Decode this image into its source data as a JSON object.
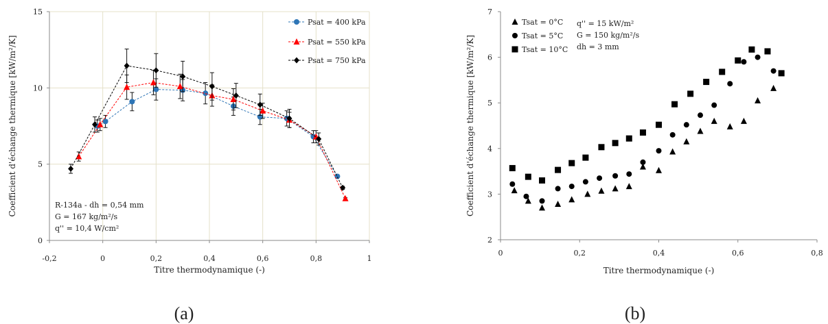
{
  "chart_data": [
    {
      "type": "scatter",
      "panel_label": "(a)",
      "xlabel": "Titre thermodynamique (-)",
      "ylabel": "Coefficient d'échange thermique [kW/m²/K]",
      "xlim": [
        -0.2,
        1
      ],
      "ylim": [
        0,
        15
      ],
      "x_ticks": [
        "-0,2",
        "0",
        "0,2",
        "0,4",
        "0,6",
        "0,8",
        "1"
      ],
      "y_ticks": [
        "0",
        "5",
        "10",
        "15"
      ],
      "grid": true,
      "legend_position": "top-right",
      "annotation": [
        "R-134a - dh = 0,54 mm",
        "G = 167 kg/m²/s",
        "q'' = 10,4 W/cm²"
      ],
      "series": [
        {
          "name": "Psat = 400 kPa",
          "color": "#2e75b6",
          "marker": "circle",
          "points": [
            {
              "x": -0.02,
              "y": 7.5,
              "err": 0.4
            },
            {
              "x": 0.01,
              "y": 7.8,
              "err": 0.4
            },
            {
              "x": 0.11,
              "y": 9.1,
              "err": 0.6
            },
            {
              "x": 0.2,
              "y": 9.9,
              "err": 0.7
            },
            {
              "x": 0.3,
              "y": 9.85,
              "err": 0.7
            },
            {
              "x": 0.385,
              "y": 9.65,
              "err": 0.7
            },
            {
              "x": 0.49,
              "y": 8.8,
              "err": 0.6
            },
            {
              "x": 0.59,
              "y": 8.1,
              "err": 0.5
            },
            {
              "x": 0.69,
              "y": 8.0,
              "err": 0.5
            },
            {
              "x": 0.79,
              "y": 6.8,
              "err": 0.4
            },
            {
              "x": 0.88,
              "y": 4.2,
              "err": 0.1
            }
          ]
        },
        {
          "name": "Psat = 550 kPa",
          "color": "#ff0000",
          "marker": "triangle",
          "points": [
            {
              "x": -0.09,
              "y": 5.5,
              "err": 0.3
            },
            {
              "x": -0.01,
              "y": 7.6,
              "err": 0.4
            },
            {
              "x": 0.09,
              "y": 10.05,
              "err": 0.8
            },
            {
              "x": 0.19,
              "y": 10.35,
              "err": 0.8
            },
            {
              "x": 0.29,
              "y": 10.1,
              "err": 0.8
            },
            {
              "x": 0.41,
              "y": 9.5,
              "err": 0.7
            },
            {
              "x": 0.49,
              "y": 9.25,
              "err": 0.7
            },
            {
              "x": 0.6,
              "y": 8.5,
              "err": 0.5
            },
            {
              "x": 0.7,
              "y": 7.9,
              "err": 0.5
            },
            {
              "x": 0.8,
              "y": 6.8,
              "err": 0.4
            },
            {
              "x": 0.91,
              "y": 2.75,
              "err": 0.05
            }
          ]
        },
        {
          "name": "Psat = 750 kPa",
          "color": "#000000",
          "marker": "diamond",
          "points": [
            {
              "x": -0.12,
              "y": 4.7,
              "err": 0.3
            },
            {
              "x": -0.03,
              "y": 7.6,
              "err": 0.5
            },
            {
              "x": 0.09,
              "y": 11.45,
              "err": 1.1
            },
            {
              "x": 0.2,
              "y": 11.15,
              "err": 1.1
            },
            {
              "x": 0.3,
              "y": 10.75,
              "err": 1.0
            },
            {
              "x": 0.41,
              "y": 10.1,
              "err": 0.9
            },
            {
              "x": 0.5,
              "y": 9.5,
              "err": 0.8
            },
            {
              "x": 0.59,
              "y": 8.9,
              "err": 0.7
            },
            {
              "x": 0.7,
              "y": 8.0,
              "err": 0.6
            },
            {
              "x": 0.81,
              "y": 6.65,
              "err": 0.4
            },
            {
              "x": 0.9,
              "y": 3.45,
              "err": 0.1
            }
          ]
        }
      ]
    },
    {
      "type": "scatter",
      "panel_label": "(b)",
      "xlabel": "Titre thermodynamique (-)",
      "ylabel": "Coefficient d'échange thermique [kW/m²/K]",
      "xlim": [
        0,
        0.8
      ],
      "ylim": [
        2,
        7
      ],
      "x_ticks": [
        "0",
        "0,2",
        "0,4",
        "0,6",
        "0,8"
      ],
      "y_ticks": [
        "2",
        "3",
        "4",
        "5",
        "6",
        "7"
      ],
      "grid": false,
      "legend_position": "top-left",
      "annotation": [
        "q'' = 15 kW/m²",
        "G = 150 kg/m²/s",
        "dh = 3 mm"
      ],
      "series": [
        {
          "name": "Tsat = 0°C",
          "color": "#000000",
          "marker": "triangle",
          "points": [
            {
              "x": 0.035,
              "y": 3.08
            },
            {
              "x": 0.07,
              "y": 2.85
            },
            {
              "x": 0.105,
              "y": 2.7
            },
            {
              "x": 0.145,
              "y": 2.78
            },
            {
              "x": 0.18,
              "y": 2.88
            },
            {
              "x": 0.22,
              "y": 3.0
            },
            {
              "x": 0.255,
              "y": 3.07
            },
            {
              "x": 0.29,
              "y": 3.12
            },
            {
              "x": 0.325,
              "y": 3.17
            },
            {
              "x": 0.36,
              "y": 3.6
            },
            {
              "x": 0.4,
              "y": 3.52
            },
            {
              "x": 0.435,
              "y": 3.93
            },
            {
              "x": 0.47,
              "y": 4.15
            },
            {
              "x": 0.505,
              "y": 4.38
            },
            {
              "x": 0.54,
              "y": 4.6
            },
            {
              "x": 0.58,
              "y": 4.48
            },
            {
              "x": 0.615,
              "y": 4.6
            },
            {
              "x": 0.65,
              "y": 5.05
            },
            {
              "x": 0.69,
              "y": 5.32
            }
          ]
        },
        {
          "name": "Tsat = 5°C",
          "color": "#000000",
          "marker": "circle",
          "points": [
            {
              "x": 0.03,
              "y": 3.22
            },
            {
              "x": 0.065,
              "y": 2.95
            },
            {
              "x": 0.105,
              "y": 2.85
            },
            {
              "x": 0.145,
              "y": 3.12
            },
            {
              "x": 0.18,
              "y": 3.17
            },
            {
              "x": 0.215,
              "y": 3.27
            },
            {
              "x": 0.25,
              "y": 3.35
            },
            {
              "x": 0.29,
              "y": 3.4
            },
            {
              "x": 0.325,
              "y": 3.44
            },
            {
              "x": 0.36,
              "y": 3.7
            },
            {
              "x": 0.4,
              "y": 3.95
            },
            {
              "x": 0.435,
              "y": 4.3
            },
            {
              "x": 0.47,
              "y": 4.52
            },
            {
              "x": 0.505,
              "y": 4.73
            },
            {
              "x": 0.54,
              "y": 4.95
            },
            {
              "x": 0.58,
              "y": 5.42
            },
            {
              "x": 0.615,
              "y": 5.9
            },
            {
              "x": 0.65,
              "y": 6.0
            },
            {
              "x": 0.69,
              "y": 5.7
            }
          ]
        },
        {
          "name": "Tsat = 10°C",
          "color": "#000000",
          "marker": "square",
          "points": [
            {
              "x": 0.03,
              "y": 3.57
            },
            {
              "x": 0.07,
              "y": 3.38
            },
            {
              "x": 0.105,
              "y": 3.3
            },
            {
              "x": 0.145,
              "y": 3.53
            },
            {
              "x": 0.18,
              "y": 3.68
            },
            {
              "x": 0.215,
              "y": 3.8
            },
            {
              "x": 0.255,
              "y": 4.03
            },
            {
              "x": 0.29,
              "y": 4.12
            },
            {
              "x": 0.325,
              "y": 4.22
            },
            {
              "x": 0.36,
              "y": 4.35
            },
            {
              "x": 0.4,
              "y": 4.52
            },
            {
              "x": 0.44,
              "y": 4.97
            },
            {
              "x": 0.48,
              "y": 5.2
            },
            {
              "x": 0.52,
              "y": 5.46
            },
            {
              "x": 0.56,
              "y": 5.68
            },
            {
              "x": 0.6,
              "y": 5.93
            },
            {
              "x": 0.635,
              "y": 6.17
            },
            {
              "x": 0.675,
              "y": 6.13
            },
            {
              "x": 0.71,
              "y": 5.65
            }
          ]
        }
      ]
    }
  ]
}
